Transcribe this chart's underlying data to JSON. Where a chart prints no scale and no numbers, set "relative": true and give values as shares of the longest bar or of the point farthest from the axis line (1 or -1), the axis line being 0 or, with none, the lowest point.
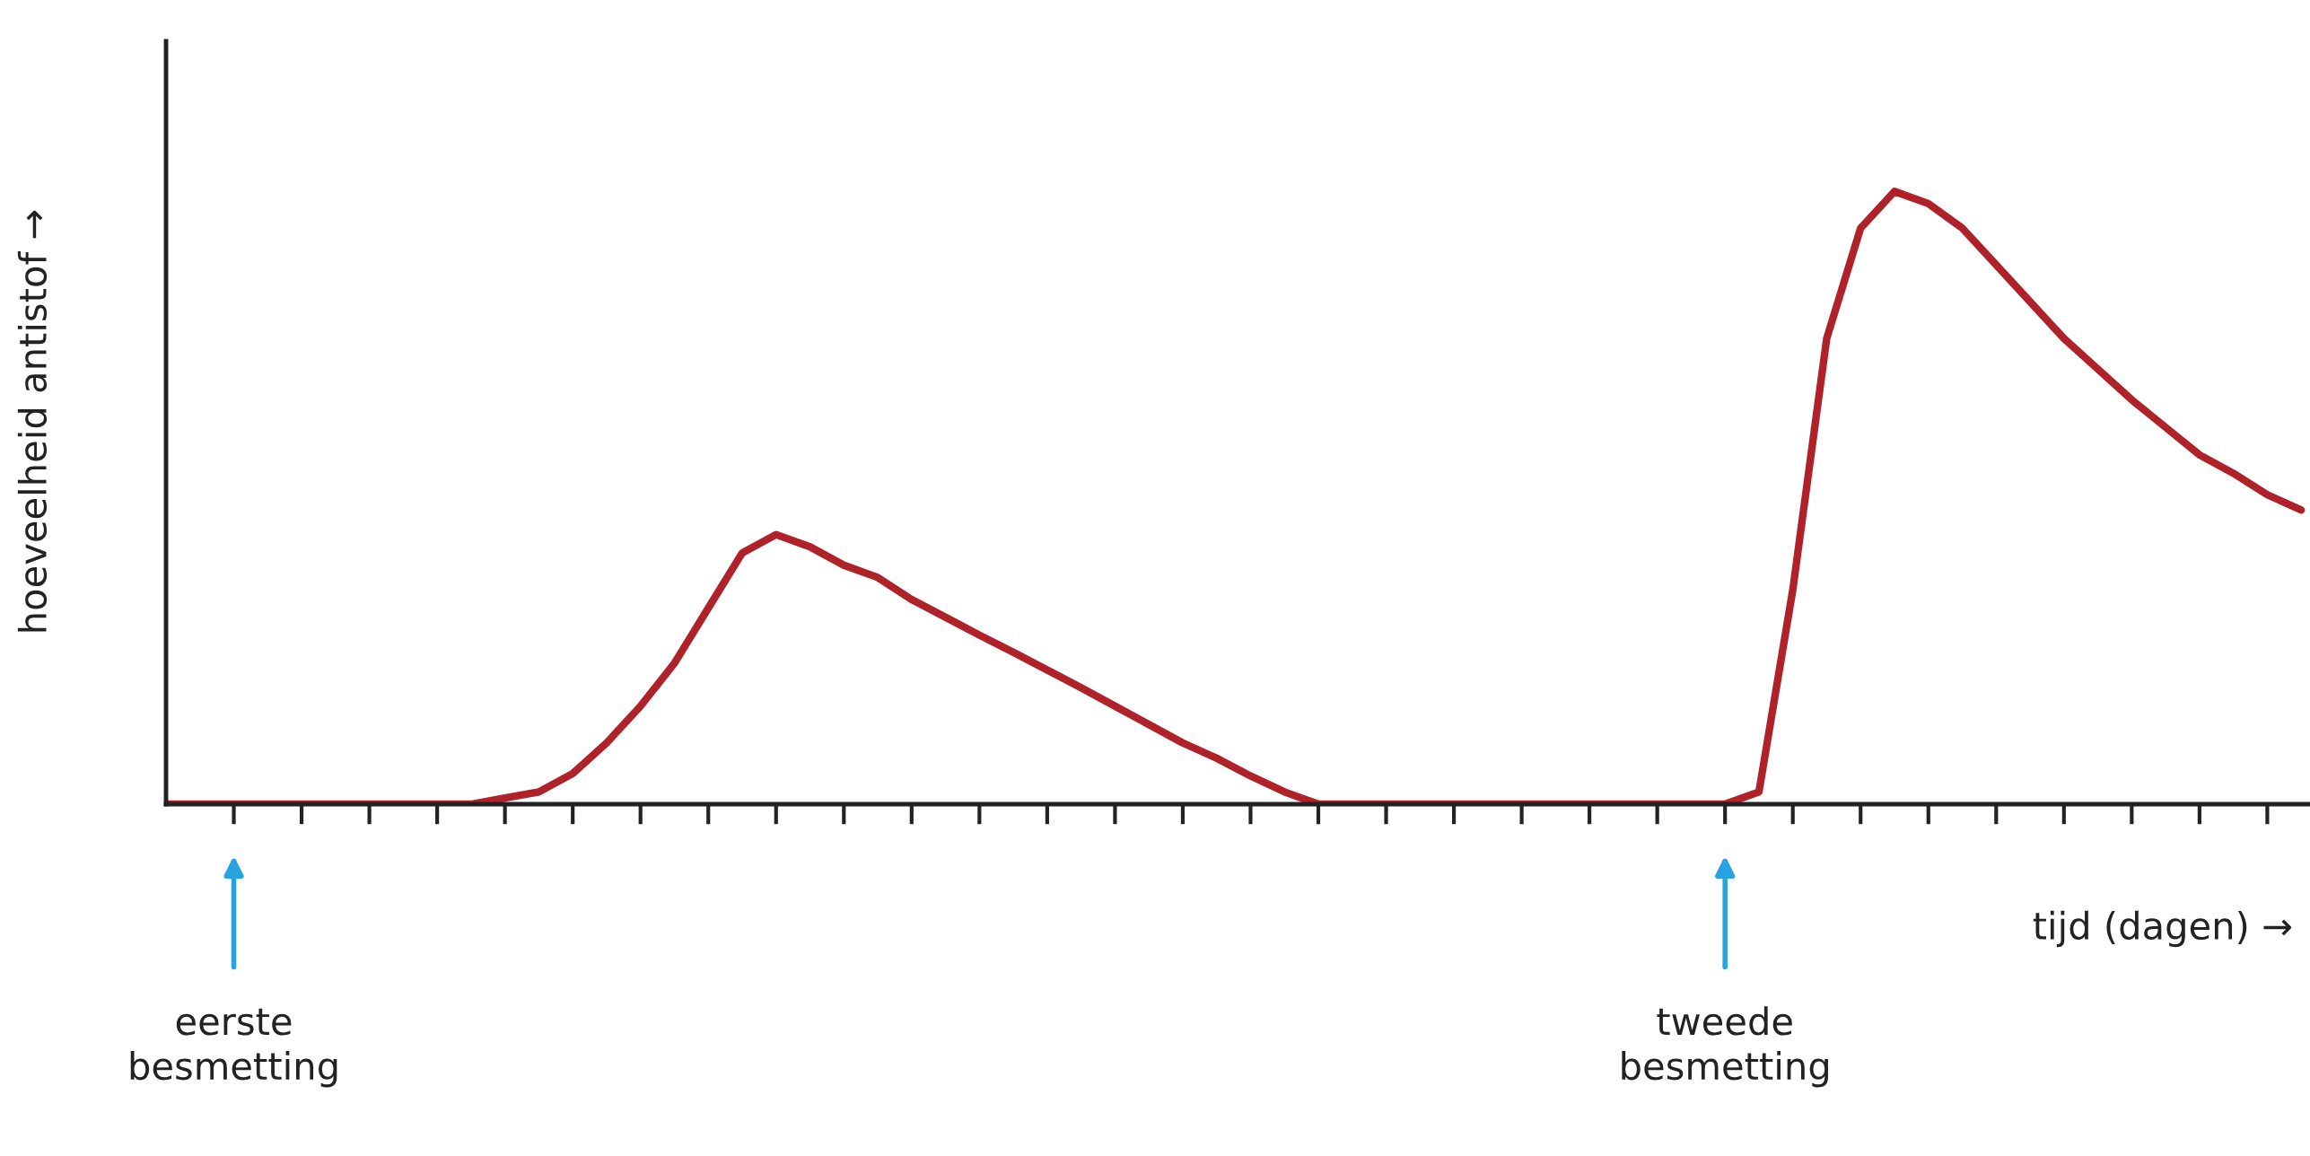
{
  "chart_data": {
    "type": "line",
    "relative": true,
    "xlabel": "tijd (dagen) →",
    "ylabel": "hoeveelheid antistof →",
    "categories": [
      null,
      null,
      null,
      null,
      null,
      null,
      null,
      null,
      null,
      null,
      null,
      null,
      null,
      null,
      null,
      null,
      null,
      null,
      null,
      null,
      null,
      null,
      null,
      null,
      null,
      null,
      null,
      null,
      null,
      null,
      null,
      null,
      null,
      null,
      null,
      null,
      null,
      null,
      null,
      null,
      null,
      null,
      null,
      null,
      null,
      null,
      null,
      null,
      null,
      null,
      null,
      null,
      null,
      null,
      null,
      null,
      null,
      null,
      null,
      null,
      null,
      null,
      null,
      null
    ],
    "series": [
      {
        "color": "#b0222a",
        "values": [
          0,
          0,
          0,
          0,
          0,
          0,
          0,
          0,
          0,
          0,
          0.01,
          0.02,
          0.05,
          0.1,
          0.16,
          0.23,
          0.32,
          0.41,
          0.44,
          0.42,
          0.39,
          0.37,
          0.334,
          0.305,
          0.276,
          0.248,
          0.219,
          0.19,
          0.16,
          0.13,
          0.1,
          0.075,
          0.046,
          0.02,
          0,
          0,
          0,
          0,
          0,
          0,
          0,
          0,
          0,
          0,
          0,
          0,
          0,
          0.02,
          0.35,
          0.76,
          0.94,
          1.0,
          0.98,
          0.94,
          0.88,
          0.82,
          0.76,
          0.71,
          0.66,
          0.615,
          0.57,
          0.54,
          0.505,
          0.48
        ]
      }
    ],
    "annotations": [
      "eerste\nbesmetting",
      "tweede\nbesmetting"
    ],
    "marker": "none",
    "line_style": "solid"
  }
}
